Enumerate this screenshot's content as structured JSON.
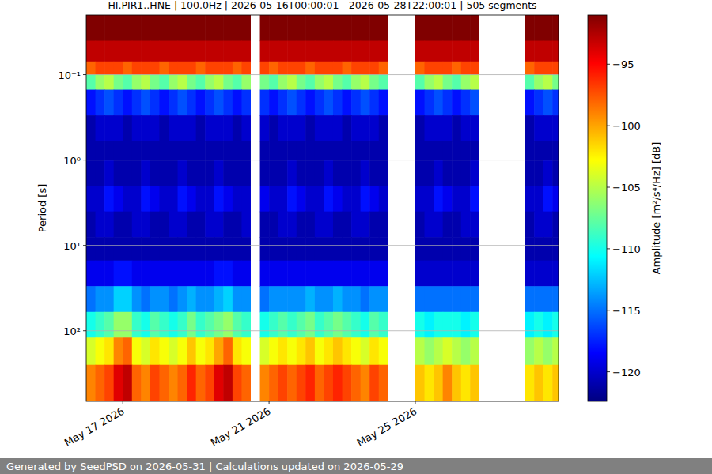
{
  "chart_data": {
    "type": "heatmap",
    "title": "HI.PIR1..HNE | 100.0Hz | 2026-05-16T00:00:01 - 2026-05-28T22:00:01 | 505 segments",
    "y_label": "Period [s]",
    "x": [
      "2026-05-16T00:00",
      "2026-05-16T06:00",
      "2026-05-16T12:00",
      "2026-05-16T18:00",
      "2026-05-17T00:00",
      "2026-05-17T06:00",
      "2026-05-17T12:00",
      "2026-05-17T18:00",
      "2026-05-18T00:00",
      "2026-05-18T06:00",
      "2026-05-18T12:00",
      "2026-05-18T18:00",
      "2026-05-19T00:00",
      "2026-05-19T06:00",
      "2026-05-19T12:00",
      "2026-05-19T18:00",
      "2026-05-20T00:00",
      "2026-05-20T06:00",
      "2026-05-20T12:00",
      "2026-05-20T18:00",
      "2026-05-21T00:00",
      "2026-05-21T06:00",
      "2026-05-21T12:00",
      "2026-05-21T18:00",
      "2026-05-22T00:00",
      "2026-05-22T06:00",
      "2026-05-22T12:00",
      "2026-05-22T18:00",
      "2026-05-23T00:00",
      "2026-05-23T06:00",
      "2026-05-23T12:00",
      "2026-05-23T18:00",
      "2026-05-24T00:00",
      "2026-05-24T06:00",
      "2026-05-24T12:00",
      "2026-05-24T18:00",
      "2026-05-25T00:00",
      "2026-05-25T06:00",
      "2026-05-25T12:00",
      "2026-05-25T18:00",
      "2026-05-26T00:00",
      "2026-05-26T06:00",
      "2026-05-26T12:00",
      "2026-05-26T18:00",
      "2026-05-27T00:00",
      "2026-05-27T06:00",
      "2026-05-27T12:00",
      "2026-05-27T18:00",
      "2026-05-28T00:00",
      "2026-05-28T06:00",
      "2026-05-28T12:00",
      "2026-05-28T18:00"
    ],
    "xlim": [
      "2026-05-16T00:00",
      "2026-05-28T22:00"
    ],
    "xticks": [
      {
        "value": "2026-05-17T00:00",
        "label": "May 17 2026"
      },
      {
        "value": "2026-05-21T00:00",
        "label": "May 21 2026"
      },
      {
        "value": "2026-05-25T00:00",
        "label": "May 25 2026"
      }
    ],
    "y_bins": [
      0.02,
      0.04,
      0.07,
      0.1,
      0.15,
      0.3,
      0.6,
      1,
      2,
      4,
      8,
      15,
      30,
      60,
      120,
      250,
      670
    ],
    "ylim": [
      0.02,
      670
    ],
    "yticks": [
      {
        "value": 0.1,
        "label": "10⁻¹"
      },
      {
        "value": 1,
        "label": "10⁰"
      },
      {
        "value": 10,
        "label": "10¹"
      },
      {
        "value": 100,
        "label": "10²"
      }
    ],
    "log": "y",
    "grid": true,
    "cells": [
      [
        -91,
        -91,
        -91,
        -91,
        -91,
        -91,
        -91,
        -91,
        -91,
        -91,
        -91,
        -91,
        -91,
        -91,
        -91,
        -91,
        -91,
        -91,
        null,
        -91,
        -91,
        -91,
        -91,
        -91,
        -91,
        -91,
        -91,
        -91,
        -91,
        -91,
        -91,
        -91,
        -91,
        null,
        null,
        null,
        -91,
        -91,
        -91,
        -91,
        -91,
        -91,
        -91,
        null,
        null,
        null,
        null,
        null,
        -91,
        -91,
        -91,
        -91
      ],
      [
        -93,
        -93,
        -93,
        -93,
        -93,
        -93,
        -93,
        -93,
        -93,
        -93,
        -93,
        -93,
        -93,
        -93,
        -93,
        -93,
        -93,
        -93,
        null,
        -93,
        -93,
        -93,
        -93,
        -93,
        -93,
        -93,
        -93,
        -93,
        -93,
        -93,
        -93,
        -93,
        -93,
        null,
        null,
        null,
        -93,
        -93,
        -93,
        -93,
        -93,
        -93,
        -93,
        null,
        null,
        null,
        null,
        null,
        -93,
        -93,
        -93,
        -93
      ],
      [
        -98,
        -97,
        -97,
        -97,
        -98,
        -97,
        -97,
        -97,
        -98,
        -97,
        -97,
        -97,
        -98,
        -97,
        -97,
        -97,
        -98,
        -97,
        null,
        -97,
        -98,
        -97,
        -97,
        -97,
        -98,
        -97,
        -97,
        -97,
        -98,
        -97,
        -97,
        -97,
        -98,
        null,
        null,
        null,
        -98,
        -97,
        -97,
        -97,
        -98,
        -97,
        -97,
        null,
        null,
        null,
        null,
        null,
        -98,
        -97,
        -97,
        -97
      ],
      [
        -108,
        -106,
        -105,
        -107,
        -108,
        -106,
        -105,
        -107,
        -108,
        -106,
        -105,
        -107,
        -108,
        -106,
        -105,
        -107,
        -108,
        -106,
        null,
        -107,
        -108,
        -106,
        -105,
        -107,
        -108,
        -106,
        -105,
        -107,
        -108,
        -106,
        -105,
        -107,
        -108,
        null,
        null,
        null,
        -108,
        -106,
        -105,
        -107,
        -108,
        -106,
        -105,
        null,
        null,
        null,
        null,
        null,
        -108,
        -106,
        -105,
        -107
      ],
      [
        -118,
        -117,
        -116,
        -117,
        -118,
        -117,
        -116,
        -117,
        -118,
        -117,
        -116,
        -117,
        -118,
        -117,
        -116,
        -117,
        -118,
        -117,
        null,
        -117,
        -118,
        -117,
        -116,
        -117,
        -118,
        -117,
        -116,
        -117,
        -118,
        -117,
        -116,
        -117,
        -118,
        null,
        null,
        null,
        -118,
        -117,
        -116,
        -117,
        -118,
        -117,
        -116,
        null,
        null,
        null,
        null,
        null,
        -118,
        -117,
        -116,
        -117
      ],
      [
        -121,
        -120,
        -120,
        -120,
        -121,
        -120,
        -120,
        -120,
        -121,
        -120,
        -120,
        -120,
        -121,
        -120,
        -120,
        -120,
        -121,
        -120,
        null,
        -120,
        -121,
        -120,
        -120,
        -120,
        -121,
        -120,
        -120,
        -120,
        -121,
        -120,
        -120,
        -120,
        -121,
        null,
        null,
        null,
        -121,
        -120,
        -120,
        -120,
        -121,
        -120,
        -120,
        null,
        null,
        null,
        null,
        null,
        -121,
        -120,
        -120,
        -120
      ],
      [
        -121,
        -121,
        -121,
        -121,
        -121,
        -121,
        -121,
        -121,
        -121,
        -121,
        -121,
        -121,
        -121,
        -121,
        -121,
        -121,
        -121,
        -121,
        null,
        -121,
        -121,
        -121,
        -121,
        -121,
        -121,
        -121,
        -121,
        -121,
        -121,
        -121,
        -121,
        -121,
        -121,
        null,
        null,
        null,
        -121,
        -121,
        -121,
        -121,
        -121,
        -121,
        -121,
        null,
        null,
        null,
        null,
        null,
        -121,
        -121,
        -121,
        -121
      ],
      [
        -121,
        -121,
        -120,
        -121,
        -121,
        -121,
        -120,
        -121,
        -121,
        -121,
        -120,
        -121,
        -121,
        -121,
        -120,
        -121,
        -121,
        -121,
        null,
        -121,
        -121,
        -121,
        -120,
        -121,
        -121,
        -121,
        -120,
        -121,
        -121,
        -121,
        -120,
        -121,
        -121,
        null,
        null,
        null,
        -121,
        -121,
        -120,
        -121,
        -121,
        -121,
        -120,
        null,
        null,
        null,
        null,
        null,
        -121,
        -121,
        -120,
        -121
      ],
      [
        -120,
        -120,
        -118,
        -119,
        -120,
        -120,
        -118,
        -119,
        -120,
        -120,
        -118,
        -119,
        -120,
        -120,
        -118,
        -119,
        -120,
        -120,
        null,
        -119,
        -120,
        -120,
        -118,
        -119,
        -120,
        -120,
        -118,
        -119,
        -120,
        -120,
        -118,
        -119,
        -120,
        null,
        null,
        null,
        -120,
        -120,
        -118,
        -119,
        -120,
        -120,
        -118,
        null,
        null,
        null,
        null,
        null,
        -120,
        -120,
        -118,
        -119
      ],
      [
        -121,
        -120,
        -120,
        -121,
        -121,
        -120,
        -120,
        -121,
        -121,
        -120,
        -120,
        -121,
        -121,
        -120,
        -120,
        -121,
        -121,
        -120,
        null,
        -121,
        -121,
        -120,
        -120,
        -121,
        -121,
        -120,
        -120,
        -121,
        -121,
        -120,
        -120,
        -121,
        -121,
        null,
        null,
        null,
        -121,
        -120,
        -120,
        -121,
        -121,
        -120,
        -120,
        null,
        null,
        null,
        null,
        null,
        -121,
        -120,
        -120,
        -121
      ],
      [
        -121,
        -121,
        -121,
        -121,
        -121,
        -121,
        -121,
        -121,
        -121,
        -121,
        -121,
        -121,
        -121,
        -121,
        -121,
        -121,
        -121,
        -121,
        null,
        -121,
        -121,
        -121,
        -121,
        -121,
        -121,
        -121,
        -121,
        -121,
        -121,
        -121,
        -121,
        -121,
        -121,
        null,
        null,
        null,
        -121,
        -121,
        -121,
        -121,
        -121,
        -121,
        -121,
        null,
        null,
        null,
        null,
        null,
        -121,
        -121,
        -121,
        -121
      ],
      [
        -119,
        -119,
        -119,
        -118,
        -118,
        -119,
        -119,
        -119,
        -119,
        -119,
        -119,
        -119,
        -119,
        -119,
        -118,
        -118,
        -119,
        -119,
        null,
        -119,
        -119,
        -119,
        -119,
        -119,
        -119,
        -119,
        -119,
        -119,
        -119,
        -119,
        -119,
        -119,
        -119,
        null,
        null,
        null,
        -120,
        -120,
        -120,
        -120,
        -120,
        -120,
        -120,
        null,
        null,
        null,
        null,
        null,
        -120,
        -120,
        -120,
        -120
      ],
      [
        -115,
        -114,
        -114,
        -112,
        -112,
        -114,
        -115,
        -114,
        -114,
        -115,
        -114,
        -113,
        -114,
        -114,
        -113,
        -112,
        -114,
        -114,
        null,
        -115,
        -114,
        -114,
        -114,
        -114,
        -113,
        -114,
        -114,
        -113,
        -114,
        -114,
        -115,
        -114,
        -114,
        null,
        null,
        null,
        -115,
        -115,
        -115,
        -115,
        -115,
        -115,
        -115,
        null,
        null,
        null,
        null,
        null,
        -115,
        -115,
        -115,
        -115
      ],
      [
        -110,
        -109,
        -108,
        -106,
        -106,
        -109,
        -110,
        -108,
        -109,
        -110,
        -109,
        -107,
        -109,
        -108,
        -107,
        -106,
        -108,
        -109,
        null,
        -110,
        -109,
        -108,
        -109,
        -108,
        -107,
        -109,
        -108,
        -107,
        -108,
        -109,
        -110,
        -108,
        -109,
        null,
        null,
        null,
        -110,
        -111,
        -110,
        -110,
        -110,
        -111,
        -110,
        null,
        null,
        null,
        null,
        null,
        -111,
        -110,
        -111,
        -110
      ],
      [
        -104,
        -103,
        -102,
        -99,
        -98,
        -103,
        -104,
        -102,
        -103,
        -104,
        -103,
        -101,
        -103,
        -102,
        -100,
        -98,
        -102,
        -103,
        null,
        -104,
        -103,
        -102,
        -103,
        -102,
        -101,
        -103,
        -102,
        -101,
        -102,
        -103,
        -104,
        -102,
        -103,
        null,
        null,
        null,
        -105,
        -106,
        -105,
        -104,
        -105,
        -106,
        -105,
        null,
        null,
        null,
        null,
        null,
        -106,
        -105,
        -106,
        -105
      ],
      [
        -99,
        -98,
        -97,
        -94,
        -93,
        -98,
        -99,
        -97,
        -98,
        -99,
        -98,
        -96,
        -98,
        -97,
        -94,
        -93,
        -97,
        -98,
        null,
        -99,
        -98,
        -97,
        -98,
        -97,
        -96,
        -98,
        -97,
        -96,
        -97,
        -98,
        -99,
        -97,
        -98,
        null,
        null,
        null,
        -101,
        -102,
        -101,
        -99,
        -101,
        -102,
        -101,
        null,
        null,
        null,
        null,
        null,
        -102,
        -101,
        -102,
        -101
      ]
    ],
    "color_label": "Amplitude [m²/s⁴/Hz] [dB]",
    "clim": [
      -122.4,
      -91
    ],
    "cticks": [
      {
        "value": -95,
        "label": "−95"
      },
      {
        "value": -100,
        "label": "−100"
      },
      {
        "value": -105,
        "label": "−105"
      },
      {
        "value": -110,
        "label": "−110"
      },
      {
        "value": -115,
        "label": "−115"
      },
      {
        "value": -120,
        "label": "−120"
      }
    ]
  },
  "footer": "Generated by SeedPSD on 2026-05-31 | Calculations updated on 2026-05-29"
}
